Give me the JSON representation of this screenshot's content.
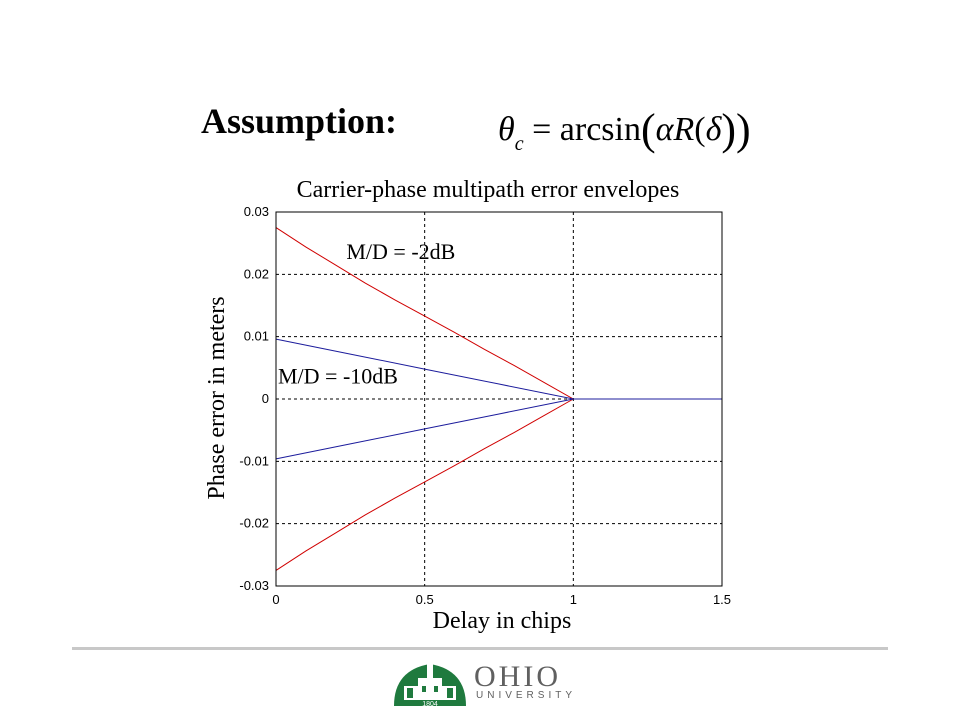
{
  "slide": {
    "heading": "Assumption:",
    "formula": {
      "theta": "θ",
      "subscript": "c",
      "equals": "=",
      "func": "arcsin",
      "open_paren": "(",
      "alpha": "α",
      "R": "R",
      "open_paren_inner": "(",
      "delta": "δ",
      "close_parens": "))"
    }
  },
  "chart_data": {
    "type": "line",
    "title": "Carrier-phase multipath error envelopes",
    "xlabel": "Delay in chips",
    "ylabel": "Phase error in meters",
    "xlim": [
      0,
      1.5
    ],
    "ylim": [
      -0.03,
      0.03
    ],
    "xticks": [
      "0",
      "0.5",
      "1",
      "1.5"
    ],
    "yticks": [
      "0.03",
      "0.02",
      "0.01",
      "0",
      "-0.01",
      "-0.02",
      "-0.03"
    ],
    "grid": true,
    "grid_style": "dashed",
    "annotations": [
      {
        "text": "M/D = -2dB",
        "x": 0.23,
        "y": 0.0225
      },
      {
        "text": "M/D = -10dB",
        "x": 0.0,
        "y": 0.0025
      }
    ],
    "series": [
      {
        "color": "#d00000",
        "x": [
          0,
          0.1,
          0.2,
          0.3,
          0.4,
          0.5,
          0.6,
          0.7,
          0.8,
          0.9,
          1.0,
          1.5
        ],
        "y": [
          0.0275,
          0.0244,
          0.0215,
          0.0186,
          0.0159,
          0.0133,
          0.0107,
          0.008,
          0.0054,
          0.0027,
          0.0,
          0.0
        ]
      },
      {
        "color": "#d00000",
        "x": [
          0,
          0.1,
          0.2,
          0.3,
          0.4,
          0.5,
          0.6,
          0.7,
          0.8,
          0.9,
          1.0
        ],
        "y": [
          -0.0275,
          -0.0244,
          -0.0215,
          -0.0186,
          -0.0159,
          -0.0133,
          -0.0107,
          -0.008,
          -0.0054,
          -0.0027,
          0.0
        ]
      },
      {
        "color": "#1c1c9c",
        "x": [
          0,
          0.25,
          0.5,
          0.75,
          1.0,
          1.5
        ],
        "y": [
          0.0096,
          0.0072,
          0.0048,
          0.0024,
          0.0,
          0.0
        ]
      },
      {
        "color": "#1c1c9c",
        "x": [
          0,
          0.25,
          0.5,
          0.75,
          1.0
        ],
        "y": [
          -0.0096,
          -0.0072,
          -0.0048,
          -0.0024,
          0.0
        ]
      }
    ]
  },
  "footer": {
    "logo_word": "OHIO",
    "logo_sub": "UNIVERSITY",
    "logo_year": "1804",
    "logo_green": "#1f7a3e",
    "rule_color": "#c8c8c8"
  }
}
